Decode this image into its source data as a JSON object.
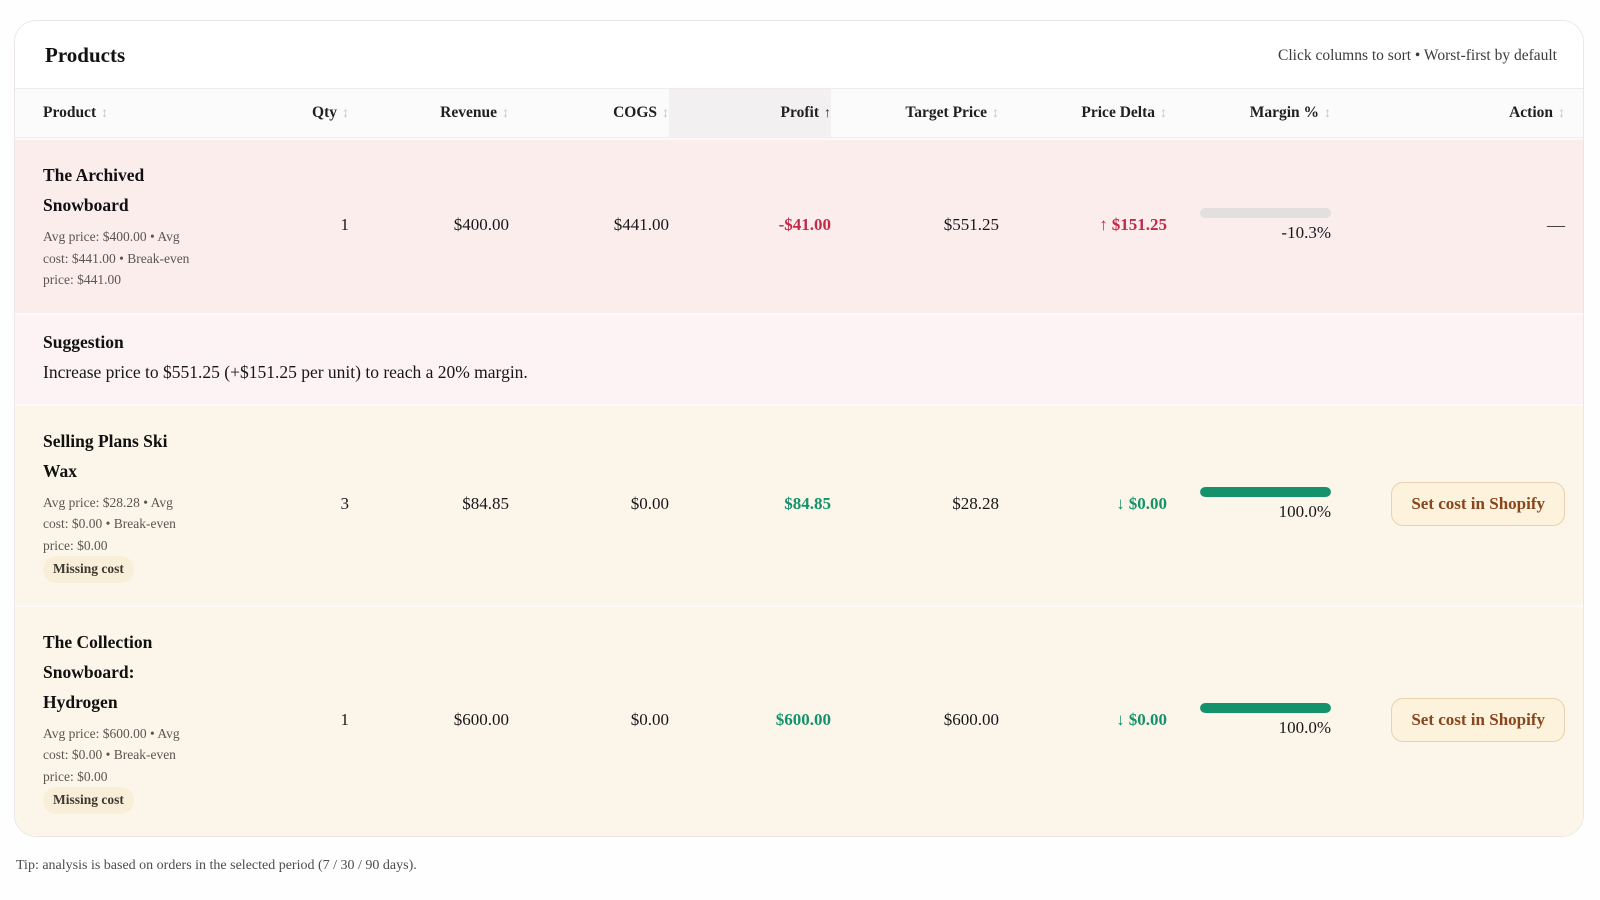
{
  "page": {
    "title": "Products",
    "sort_hint": "Click columns to sort • Worst-first by default",
    "footer_tip": "Tip: analysis is based on orders in the selected period (7 / 30 / 90 days)."
  },
  "colors": {
    "positive": "#14926a",
    "negative": "#c22a4a",
    "bar_fill": "#13926b",
    "bar_empty": "#e3dfde",
    "row_negative_bg": "#faedec",
    "row_warning_bg": "#fcf6ea",
    "suggestion_bg": "#fdf3f4",
    "button_text": "#8a451d",
    "button_bg": "#fdf2dc",
    "button_border": "#e7d2ab",
    "badge_bg": "#f9efd9"
  },
  "table": {
    "columns": [
      {
        "label": "Product",
        "sort_icon": "↕",
        "state": "inactive"
      },
      {
        "label": "Qty",
        "sort_icon": "↕",
        "state": "inactive"
      },
      {
        "label": "Revenue",
        "sort_icon": "↕",
        "state": "inactive"
      },
      {
        "label": "COGS",
        "sort_icon": "↕",
        "state": "inactive"
      },
      {
        "label": "Profit",
        "sort_icon": "↑",
        "state": "active-asc"
      },
      {
        "label": "Target Price",
        "sort_icon": "↕",
        "state": "inactive"
      },
      {
        "label": "Price Delta",
        "sort_icon": "↕",
        "state": "inactive"
      },
      {
        "label": "Margin %",
        "sort_icon": "↕",
        "state": "inactive"
      },
      {
        "label": "Action",
        "sort_icon": "↕",
        "state": "inactive"
      }
    ],
    "badge_missing_cost": "Missing cost",
    "rows": [
      {
        "name": "The Archived Snowboard",
        "meta": "Avg price: $400.00 • Avg cost: $441.00 • Break-even price: $441.00",
        "qty": "1",
        "revenue": "$400.00",
        "cogs": "$441.00",
        "profit": "-$41.00",
        "profit_tone": "negative",
        "target_price": "$551.25",
        "delta_arrow": "↑",
        "delta_value": "$151.25",
        "delta_tone": "negative",
        "margin_label": "-10.3%",
        "margin_fill": "0%",
        "action_dash": "—"
      },
      {
        "name": "Selling Plans Ski Wax",
        "meta": "Avg price: $28.28 • Avg cost: $0.00 • Break-even price: $0.00",
        "qty": "3",
        "revenue": "$84.85",
        "cogs": "$0.00",
        "profit": "$84.85",
        "profit_tone": "positive",
        "target_price": "$28.28",
        "delta_arrow": "↓",
        "delta_value": "$0.00",
        "delta_tone": "positive",
        "margin_label": "100.0%",
        "margin_fill": "100%",
        "action_button": "Set cost in Shopify"
      },
      {
        "name": "The Collection Snowboard: Hydrogen",
        "meta": "Avg price: $600.00 • Avg cost: $0.00 • Break-even price: $0.00",
        "qty": "1",
        "revenue": "$600.00",
        "cogs": "$0.00",
        "profit": "$600.00",
        "profit_tone": "positive",
        "target_price": "$600.00",
        "delta_arrow": "↓",
        "delta_value": "$0.00",
        "delta_tone": "positive",
        "margin_label": "100.0%",
        "margin_fill": "100%",
        "action_button": "Set cost in Shopify"
      }
    ],
    "suggestion": {
      "title": "Suggestion",
      "text": "Increase price to $551.25 (+$151.25 per unit) to reach a 20% margin."
    }
  }
}
